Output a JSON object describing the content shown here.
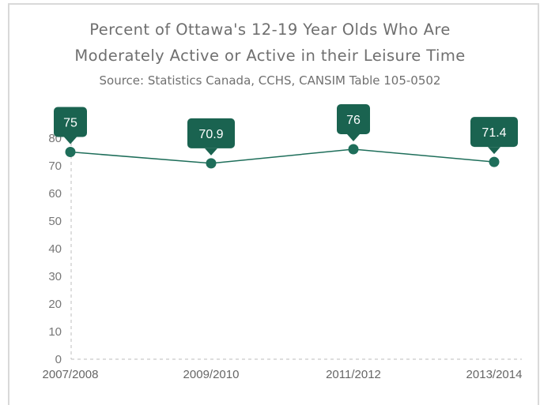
{
  "chart_data": {
    "type": "line",
    "title_lines": [
      "Percent of Ottawa's 12-19 Year Olds Who Are",
      "Moderately Active or Active in their Leisure Time"
    ],
    "subtitle": "Source: Statistics Canada, CCHS, CANSIM Table 105-0502",
    "categories": [
      "2007/2008",
      "2009/2010",
      "2011/2012",
      "2013/2014"
    ],
    "series": [
      {
        "values": [
          75,
          70.9,
          76,
          71.4
        ]
      }
    ],
    "data_labels": [
      "75",
      "70.9",
      "76",
      "71.4"
    ],
    "y_ticks": [
      0,
      10,
      20,
      30,
      40,
      50,
      60,
      70,
      80
    ],
    "ylim": [
      0,
      80
    ],
    "grid": false,
    "colors": {
      "series": "#1e6e5a",
      "label_bg": "#1a6350",
      "axis": "#bdbdbd"
    }
  }
}
